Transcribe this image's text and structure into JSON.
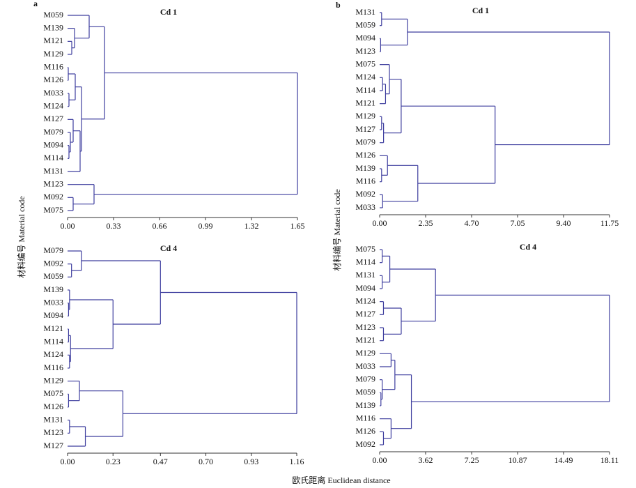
{
  "charts": [
    {
      "type": "dendrogram",
      "panel": "a",
      "title": "Cd 1",
      "color": "#3d3d9e",
      "xlim": [
        0,
        1.65
      ],
      "xticks": [
        {
          "value": 0,
          "label": "0.00"
        },
        0.33,
        0.66,
        0.99,
        1.32,
        1.65
      ],
      "tree": {
        "height": 1.65,
        "children": [
          {
            "height": 0.265,
            "children": [
              {
                "height": 0.155,
                "children": [
                  "M059",
                  {
                    "height": 0.05,
                    "children": [
                      "M139",
                      {
                        "height": 0.03,
                        "children": [
                          "M121",
                          "M129"
                        ]
                      }
                    ]
                  }
                ]
              },
              {
                "height": 0.1,
                "children": [
                  {
                    "height": 0.055,
                    "children": [
                      {
                        "height": 0.005,
                        "children": [
                          "M116",
                          "M126"
                        ]
                      },
                      {
                        "height": 0.01,
                        "children": [
                          "M033",
                          "M124"
                        ]
                      }
                    ]
                  },
                  {
                    "height": 0.09,
                    "children": [
                      {
                        "height": 0.04,
                        "children": [
                          "M127",
                          {
                            "height": 0.02,
                            "children": [
                              "M079",
                              {
                                "height": 0.01,
                                "children": [
                                  "M094",
                                  "M114"
                                ]
                              }
                            ]
                          }
                        ]
                      },
                      "M131"
                    ]
                  }
                ]
              }
            ]
          },
          {
            "height": 0.19,
            "children": [
              "M123",
              {
                "height": 0.04,
                "children": [
                  "M092",
                  "M075"
                ]
              }
            ]
          }
        ]
      }
    },
    {
      "type": "dendrogram",
      "panel": "b",
      "title": "Cd 1",
      "color": "#3d3d9e",
      "xlim": [
        0,
        11.75
      ],
      "xticks": [
        {
          "value": 0,
          "label": "0.00"
        },
        2.35,
        {
          "value": 4.7,
          "label": "4.70"
        },
        7.05,
        {
          "value": 9.4,
          "label": "9.40"
        },
        11.75
      ],
      "tree": {
        "height": 11.75,
        "children": [
          {
            "height": 1.42,
            "children": [
              {
                "height": 0.1,
                "children": [
                  "M131",
                  "M059"
                ]
              },
              {
                "height": 0.05,
                "children": [
                  "M094",
                  "M123"
                ]
              }
            ]
          },
          {
            "height": 5.9,
            "children": [
              {
                "height": 1.1,
                "children": [
                  {
                    "height": 0.5,
                    "children": [
                      "M075",
                      {
                        "height": 0.3,
                        "children": [
                          {
                            "height": 0.15,
                            "children": [
                              "M124",
                              "M114"
                            ]
                          },
                          "M121"
                        ]
                      }
                    ]
                  },
                  {
                    "height": 0.2,
                    "children": [
                      {
                        "height": 0.1,
                        "children": [
                          "M129",
                          "M127"
                        ]
                      },
                      "M079"
                    ]
                  }
                ]
              },
              {
                "height": 1.95,
                "children": [
                  {
                    "height": 0.4,
                    "children": [
                      "M126",
                      {
                        "height": 0.1,
                        "children": [
                          "M139",
                          "M116"
                        ]
                      }
                    ]
                  },
                  {
                    "height": 0.15,
                    "children": [
                      "M092",
                      "M033"
                    ]
                  }
                ]
              }
            ]
          }
        ]
      }
    },
    {
      "type": "dendrogram",
      "title": "Cd 4",
      "color": "#3d3d9e",
      "xlim": [
        0,
        1.16
      ],
      "xticks": [
        {
          "value": 0,
          "label": "0.00"
        },
        0.23,
        0.47,
        {
          "value": 0.7,
          "label": "0.70"
        },
        0.93,
        1.16
      ],
      "tree": {
        "height": 1.16,
        "children": [
          {
            "height": 0.47,
            "children": [
              {
                "height": 0.07,
                "children": [
                  "M079",
                  {
                    "height": 0.02,
                    "children": [
                      "M092",
                      "M059"
                    ]
                  }
                ]
              },
              {
                "height": 0.23,
                "children": [
                  {
                    "height": 0.01,
                    "children": [
                      "M139",
                      {
                        "height": 0.005,
                        "children": [
                          "M033",
                          "M094"
                        ]
                      }
                    ]
                  },
                  {
                    "height": 0.015,
                    "children": [
                      {
                        "height": 0.005,
                        "children": [
                          "M121",
                          "M114"
                        ]
                      },
                      {
                        "height": 0.01,
                        "children": [
                          "M124",
                          "M116"
                        ]
                      }
                    ]
                  }
                ]
              }
            ]
          },
          {
            "height": 0.28,
            "children": [
              {
                "height": 0.06,
                "children": [
                  "M129",
                  {
                    "height": 0.005,
                    "children": [
                      "M075",
                      "M126"
                    ]
                  }
                ]
              },
              {
                "height": 0.09,
                "children": [
                  {
                    "height": 0.01,
                    "children": [
                      "M131",
                      "M123"
                    ]
                  },
                  "M127"
                ]
              }
            ]
          }
        ]
      }
    },
    {
      "type": "dendrogram",
      "title": "Cd 4",
      "color": "#3d3d9e",
      "xlim": [
        0,
        18.11
      ],
      "xticks": [
        {
          "value": 0,
          "label": "0.00"
        },
        3.62,
        7.25,
        10.87,
        14.49,
        18.11
      ],
      "tree": {
        "height": 18.11,
        "children": [
          {
            "height": 4.4,
            "children": [
              {
                "height": 0.8,
                "children": [
                  {
                    "height": 0.2,
                    "children": [
                      "M075",
                      "M114"
                    ]
                  },
                  {
                    "height": 0.2,
                    "children": [
                      "M131",
                      "M094"
                    ]
                  }
                ]
              },
              {
                "height": 1.7,
                "children": [
                  {
                    "height": 0.3,
                    "children": [
                      "M124",
                      "M127"
                    ]
                  },
                  {
                    "height": 0.3,
                    "children": [
                      "M123",
                      "M121"
                    ]
                  }
                ]
              }
            ]
          },
          {
            "height": 2.5,
            "children": [
              {
                "height": 1.2,
                "children": [
                  {
                    "height": 0.9,
                    "children": [
                      "M129",
                      "M033"
                    ]
                  },
                  {
                    "height": 0.2,
                    "children": [
                      "M079",
                      {
                        "height": 0.1,
                        "children": [
                          "M059",
                          "M139"
                        ]
                      }
                    ]
                  }
                ]
              },
              {
                "height": 0.9,
                "children": [
                  "M116",
                  {
                    "height": 0.3,
                    "children": [
                      "M126",
                      "M092"
                    ]
                  }
                ]
              }
            ]
          }
        ]
      }
    }
  ],
  "y_label": "材料编号 Material code",
  "x_label": "欧氏距离 Euclidean distance"
}
